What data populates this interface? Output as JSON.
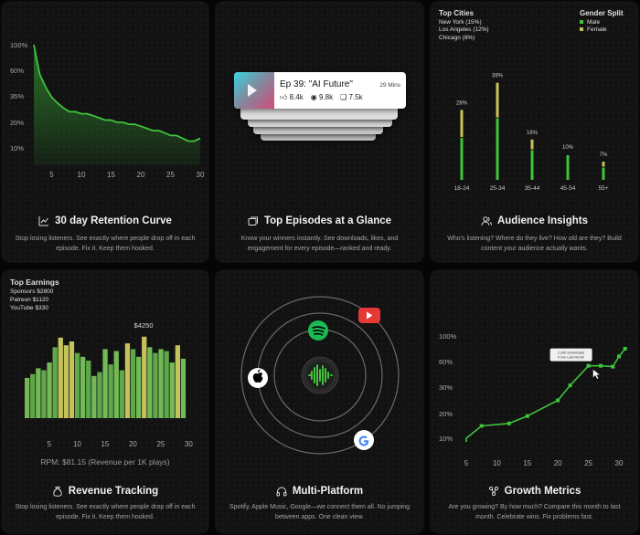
{
  "colors": {
    "green": "#3fc43a",
    "olive": "#c9c25a",
    "card": "#121212",
    "accent_red": "#e53935"
  },
  "cards": {
    "retention": {
      "title": "30 day Retention Curve",
      "desc": "Stop losing listeners. See exactly where people drop off in each episode. Fix it. Keep them hooked.",
      "icon": "line-chart-icon",
      "chart_data": {
        "type": "area",
        "title": "30 day Retention Curve",
        "y_tick_labels": [
          "100%",
          "60%",
          "35%",
          "20%",
          "10%"
        ],
        "y_tick_values": [
          100,
          60,
          35,
          20,
          10
        ],
        "x_ticks": [
          5,
          10,
          15,
          20,
          25,
          30
        ],
        "x": [
          3,
          4,
          5,
          6,
          7,
          8,
          9,
          10,
          11,
          12,
          13,
          14,
          15,
          16,
          17,
          18,
          19,
          20,
          21,
          22,
          23,
          24,
          25,
          26,
          27,
          28,
          29,
          30,
          31
        ],
        "values": [
          100,
          55,
          42,
          34,
          30,
          27,
          25,
          25,
          24,
          24,
          23,
          22,
          21,
          21,
          20,
          20,
          19,
          19,
          18,
          17,
          16,
          16,
          15,
          14,
          14,
          13,
          12,
          12,
          13
        ]
      }
    },
    "episodes": {
      "title": "Top Episodes at a Glance",
      "desc": "Know your winners instantly. See downloads, likes, and engagement for every episode—ranked and ready.",
      "icon": "episodes-icon",
      "front": {
        "title": "Ep 39: \"AI Future\"",
        "duration": "29 Mins",
        "likes": "8.4k",
        "views": "9.8k",
        "comments": "7.5k"
      }
    },
    "audience": {
      "title": "Audience Insights",
      "desc": "Who's listening? Where do they live? How old are they? Build content your audience actually wants.",
      "icon": "users-icon",
      "cities_heading": "Top Cities",
      "cities": [
        "New York (15%)",
        "Los Angeles (12%)",
        "Chicago (8%)"
      ],
      "gender_heading": "Gender Split",
      "gender": [
        {
          "label": "Male",
          "color": "#3fc43a"
        },
        {
          "label": "Female",
          "color": "#c9c25a"
        }
      ],
      "chart_data": {
        "type": "bar",
        "categories": [
          "18-24",
          "25-34",
          "35-44",
          "45-54",
          "55+"
        ],
        "value_labels": [
          "28%",
          "39%",
          "16%",
          "10%",
          "7%"
        ],
        "values": [
          28,
          39,
          16,
          10,
          7
        ],
        "series": [
          {
            "name": "Male",
            "values": [
              17,
              25,
              12,
              10,
              5
            ]
          },
          {
            "name": "Female",
            "values": [
              11,
              14,
              4,
              0,
              2
            ]
          }
        ]
      }
    },
    "revenue": {
      "title": "Revenue Tracking",
      "desc": "Stop losing listeners. See exactly where people drop off in each episode. Fix it. Keep them hooked.",
      "icon": "money-bag-icon",
      "earnings_heading": "Top Earnings",
      "earnings": [
        "Sponsors $2800",
        "Patreon $1120",
        "YouTube $330"
      ],
      "rpm": "RPM: $81.15 (Revenue per 1K plays)",
      "chart_data": {
        "type": "bar",
        "x_ticks": [
          5,
          10,
          15,
          20,
          25,
          30
        ],
        "x": [
          1,
          2,
          3,
          4,
          5,
          6,
          7,
          8,
          9,
          10,
          11,
          12,
          13,
          14,
          15,
          16,
          17,
          18,
          19,
          20,
          21,
          22,
          23,
          24,
          25,
          26,
          27,
          28,
          29
        ],
        "values": [
          2100,
          2300,
          2600,
          2500,
          2900,
          3700,
          4200,
          3800,
          4000,
          3400,
          3200,
          3000,
          2200,
          2400,
          3600,
          2800,
          3500,
          2500,
          3900,
          3600,
          3200,
          4250,
          3700,
          3400,
          3600,
          3500,
          2900,
          3800,
          3100
        ],
        "highlight_label": "$4250",
        "highlight_index": 21
      }
    },
    "platform": {
      "title": "Multi-Platform",
      "desc": "Spotify, Apple Music, Google—we connect them all. No jumping between apps. One clean view.",
      "icon": "headphones-icon"
    },
    "growth": {
      "title": "Growth Metrics",
      "desc": "Are you growing? By how much? Compare this month to last month. Celebrate wins. Fix problems fast.",
      "icon": "growth-icon",
      "tooltip": "2,340 Downloads From Last Month",
      "chart_data": {
        "type": "line",
        "y_tick_labels": [
          "100%",
          "60%",
          "30%",
          "20%",
          "10%"
        ],
        "y_tick_values": [
          100,
          60,
          30,
          20,
          10
        ],
        "x_ticks": [
          5,
          10,
          15,
          20,
          25,
          30
        ],
        "x": [
          5,
          7.5,
          12,
          15,
          20,
          22,
          25,
          27,
          29,
          30,
          31
        ],
        "values": [
          10,
          15,
          16,
          19,
          25,
          32,
          55,
          55,
          54,
          68,
          80
        ]
      }
    }
  }
}
